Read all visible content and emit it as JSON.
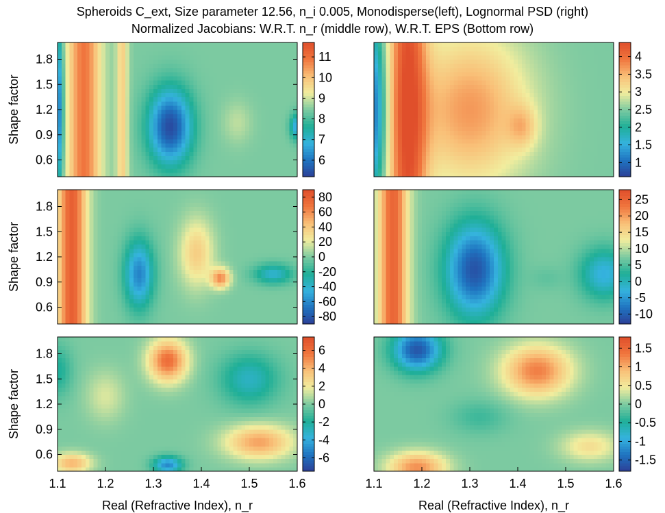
{
  "title_line1": "Spheroids C_ext, Size parameter 12.56, n_i 0.005, Monodisperse(left), Lognormal PSD (right)",
  "title_line2": "Normalized Jacobians: W.R.T. n_r (middle row), W.R.T. EPS (Bottom row)",
  "colors": {
    "colormap": [
      "#2c3f97",
      "#1f74c0",
      "#35b3de",
      "#1faf97",
      "#7ccaa1",
      "#f1ed9e",
      "#f9c078",
      "#f0763e",
      "#e04f2b"
    ],
    "frame": "#000000"
  },
  "chart_data": [
    {
      "type": "heatmap",
      "panel": "monodisperse-extinction",
      "xlabel": "",
      "ylabel": "Shape factor",
      "xlim": [
        1.1,
        1.6
      ],
      "ylim": [
        0.4,
        2.0
      ],
      "xticks": [],
      "yticks": [
        0.6,
        0.9,
        1.2,
        1.5,
        1.8
      ],
      "yticklabels": [
        "0.6",
        "0.9",
        "1.2",
        "1.5",
        "1.8"
      ],
      "colorbar": {
        "min": 5.2,
        "max": 11.7,
        "ticks": [
          6,
          7,
          8,
          9,
          10,
          11
        ],
        "ticklabels": [
          "6",
          "7",
          "8",
          "9",
          "10",
          "11"
        ]
      },
      "features": [
        {
          "kind": "ridge",
          "x": 1.155,
          "width": 0.035,
          "value": 10.9
        },
        {
          "kind": "ridge",
          "x": 1.235,
          "width": 0.012,
          "value": 9.8
        },
        {
          "kind": "blob",
          "x": 1.335,
          "y": 1.0,
          "sx": 0.045,
          "sy": 0.45,
          "value": 5.4
        },
        {
          "kind": "blob",
          "x": 1.475,
          "y": 1.05,
          "sx": 0.03,
          "sy": 0.25,
          "value": 8.9
        },
        {
          "kind": "blob",
          "x": 1.6,
          "y": 1.0,
          "sx": 0.015,
          "sy": 0.15,
          "value": 6.6
        },
        {
          "kind": "blob",
          "x": 1.1,
          "y": 1.2,
          "sx": 0.012,
          "sy": 1.0,
          "value": 5.8
        }
      ]
    },
    {
      "type": "heatmap",
      "panel": "lognormal-extinction",
      "xlabel": "",
      "ylabel": "",
      "xlim": [
        1.1,
        1.6
      ],
      "ylim": [
        0.4,
        2.0
      ],
      "xticks": [],
      "yticks": [],
      "colorbar": {
        "min": 0.6,
        "max": 4.4,
        "ticks": [
          1,
          1.5,
          2,
          2.5,
          3,
          3.5,
          4
        ],
        "ticklabels": [
          "1",
          "1.5",
          "2",
          "2.5",
          "3",
          "3.5",
          "4"
        ]
      },
      "features": [
        {
          "kind": "ridge",
          "x": 1.17,
          "width": 0.04,
          "value": 4.2
        },
        {
          "kind": "blob",
          "x": 1.3,
          "y": 1.2,
          "sx": 0.12,
          "sy": 0.9,
          "value": 3.7
        },
        {
          "kind": "blob",
          "x": 1.41,
          "y": 1.0,
          "sx": 0.03,
          "sy": 0.25,
          "value": 3.1
        },
        {
          "kind": "blob",
          "x": 1.1,
          "y": 1.2,
          "sx": 0.025,
          "sy": 1.0,
          "value": 1.0
        }
      ]
    },
    {
      "type": "heatmap",
      "panel": "monodisperse-jacobian-nr",
      "xlabel": "",
      "ylabel": "Shape factor",
      "xlim": [
        1.1,
        1.6
      ],
      "ylim": [
        0.4,
        2.0
      ],
      "xticks": [],
      "yticks": [
        0.6,
        0.9,
        1.2,
        1.5,
        1.8
      ],
      "yticklabels": [
        "0.6",
        "0.9",
        "1.2",
        "1.5",
        "1.8"
      ],
      "colorbar": {
        "min": -90,
        "max": 90,
        "ticks": [
          -80,
          -60,
          -40,
          -20,
          0,
          20,
          40,
          60,
          80
        ],
        "ticklabels": [
          "-80",
          "-60",
          "-40",
          "-20",
          "0",
          "20",
          "40",
          "60",
          "80"
        ]
      },
      "features": [
        {
          "kind": "ridge",
          "x": 1.13,
          "width": 0.03,
          "value": 80
        },
        {
          "kind": "blob",
          "x": 1.27,
          "y": 1.0,
          "sx": 0.03,
          "sy": 0.4,
          "value": -62
        },
        {
          "kind": "blob",
          "x": 1.39,
          "y": 1.25,
          "sx": 0.035,
          "sy": 0.4,
          "value": 38
        },
        {
          "kind": "blob",
          "x": 1.44,
          "y": 0.95,
          "sx": 0.02,
          "sy": 0.12,
          "value": 60
        },
        {
          "kind": "blob",
          "x": 1.55,
          "y": 1.0,
          "sx": 0.04,
          "sy": 0.12,
          "value": -40
        }
      ]
    },
    {
      "type": "heatmap",
      "panel": "lognormal-jacobian-nr",
      "xlabel": "",
      "ylabel": "",
      "xlim": [
        1.1,
        1.6
      ],
      "ylim": [
        0.4,
        2.0
      ],
      "xticks": [],
      "yticks": [],
      "colorbar": {
        "min": -13,
        "max": 28,
        "ticks": [
          -10,
          -5,
          0,
          5,
          10,
          15,
          20,
          25
        ],
        "ticklabels": [
          "-10",
          "-5",
          "0",
          "5",
          "10",
          "15",
          "20",
          "25"
        ]
      },
      "features": [
        {
          "kind": "ridge",
          "x": 1.14,
          "width": 0.03,
          "value": 25
        },
        {
          "kind": "blob",
          "x": 1.31,
          "y": 1.05,
          "sx": 0.06,
          "sy": 0.55,
          "value": -11
        },
        {
          "kind": "blob",
          "x": 1.46,
          "y": 0.95,
          "sx": 0.035,
          "sy": 0.15,
          "value": 6
        },
        {
          "kind": "blob",
          "x": 1.58,
          "y": 1.0,
          "sx": 0.05,
          "sy": 0.3,
          "value": -3
        }
      ]
    },
    {
      "type": "heatmap",
      "panel": "monodisperse-jacobian-eps",
      "xlabel": "Real (Refractive Index), n_r",
      "ylabel": "Shape factor",
      "xlim": [
        1.1,
        1.6
      ],
      "ylim": [
        0.4,
        2.0
      ],
      "xticks": [
        1.1,
        1.2,
        1.3,
        1.4,
        1.5,
        1.6
      ],
      "xticklabels": [
        "1.1",
        "1.2",
        "1.3",
        "1.4",
        "1.5",
        "1.6"
      ],
      "yticks": [
        0.6,
        0.9,
        1.2,
        1.5,
        1.8
      ],
      "yticklabels": [
        "0.6",
        "0.9",
        "1.2",
        "1.5",
        "1.8"
      ],
      "colorbar": {
        "min": -7.5,
        "max": 7.5,
        "ticks": [
          -6,
          -4,
          -2,
          0,
          2,
          4,
          6
        ],
        "ticklabels": [
          "-6",
          "-4",
          "-2",
          "0",
          "2",
          "4",
          "6"
        ]
      },
      "features": [
        {
          "kind": "blob",
          "x": 1.33,
          "y": 1.72,
          "sx": 0.04,
          "sy": 0.25,
          "value": 6
        },
        {
          "kind": "blob",
          "x": 1.13,
          "y": 0.5,
          "sx": 0.04,
          "sy": 0.12,
          "value": 4
        },
        {
          "kind": "blob",
          "x": 1.2,
          "y": 1.3,
          "sx": 0.04,
          "sy": 0.3,
          "value": 1.5
        },
        {
          "kind": "blob",
          "x": 1.52,
          "y": 0.75,
          "sx": 0.07,
          "sy": 0.2,
          "value": 4.5
        },
        {
          "kind": "blob",
          "x": 1.5,
          "y": 1.5,
          "sx": 0.06,
          "sy": 0.3,
          "value": -3
        },
        {
          "kind": "blob",
          "x": 1.33,
          "y": 0.48,
          "sx": 0.03,
          "sy": 0.1,
          "value": -5
        },
        {
          "kind": "blob",
          "x": 1.1,
          "y": 1.6,
          "sx": 0.03,
          "sy": 0.3,
          "value": -2
        }
      ]
    },
    {
      "type": "heatmap",
      "panel": "lognormal-jacobian-eps",
      "xlabel": "Real (Refractive Index), n_r",
      "ylabel": "",
      "xlim": [
        1.1,
        1.6
      ],
      "ylim": [
        0.4,
        2.0
      ],
      "xticks": [
        1.1,
        1.2,
        1.3,
        1.4,
        1.5,
        1.6
      ],
      "xticklabels": [
        "1.1",
        "1.2",
        "1.3",
        "1.4",
        "1.5",
        "1.6"
      ],
      "yticks": [],
      "colorbar": {
        "min": -1.8,
        "max": 1.8,
        "ticks": [
          -1.5,
          -1,
          -0.5,
          0,
          0.5,
          1,
          1.5
        ],
        "ticklabels": [
          "-1.5",
          "-1",
          "-0.5",
          "0",
          "0.5",
          "1",
          "1.5"
        ]
      },
      "features": [
        {
          "kind": "blob",
          "x": 1.19,
          "y": 1.85,
          "sx": 0.05,
          "sy": 0.25,
          "value": -1.6
        },
        {
          "kind": "blob",
          "x": 1.44,
          "y": 1.6,
          "sx": 0.07,
          "sy": 0.3,
          "value": 1.3
        },
        {
          "kind": "blob",
          "x": 1.19,
          "y": 0.45,
          "sx": 0.06,
          "sy": 0.18,
          "value": 1.2
        },
        {
          "kind": "blob",
          "x": 1.55,
          "y": 0.7,
          "sx": 0.06,
          "sy": 0.18,
          "value": 0.6
        },
        {
          "kind": "blob",
          "x": 1.32,
          "y": 1.05,
          "sx": 0.06,
          "sy": 0.2,
          "value": -0.3
        }
      ]
    }
  ]
}
